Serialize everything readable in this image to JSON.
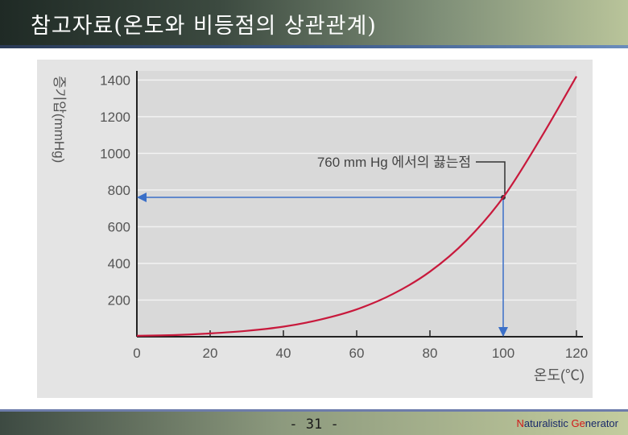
{
  "slide": {
    "title": "참고자료(온도와 비등점의 상관관계)",
    "page_number": "- 31 -",
    "brand": {
      "n": "N",
      "aturalistic": "aturalistic ",
      "g": "Ge",
      "enerator": "nerator"
    }
  },
  "colors": {
    "curve": "#c8193c",
    "guide": "#3a6fc8",
    "plot_bg": "#d9d9d9",
    "grid": "#f2f2f2"
  },
  "chart_data": {
    "type": "line",
    "title": "",
    "xlabel": "온도(℃)",
    "ylabel": "증기압(mmHg)",
    "xlim": [
      0,
      120
    ],
    "ylim": [
      0,
      1450
    ],
    "x_ticks": [
      "0",
      "20",
      "40",
      "60",
      "80",
      "100",
      "120"
    ],
    "y_ticks": [
      "200",
      "400",
      "600",
      "800",
      "1000",
      "1200",
      "1400"
    ],
    "series": [
      {
        "x": [
          0,
          10,
          20,
          30,
          40,
          50,
          60,
          70,
          80,
          90,
          100,
          110,
          120
        ],
        "values": [
          5,
          9,
          18,
          32,
          55,
          93,
          149,
          234,
          355,
          526,
          760,
          1075,
          1420
        ]
      }
    ],
    "annotation": {
      "text": "760 mm Hg 에서의 끓는점",
      "x": 100,
      "y": 760
    },
    "grid": true,
    "legend": "none"
  }
}
